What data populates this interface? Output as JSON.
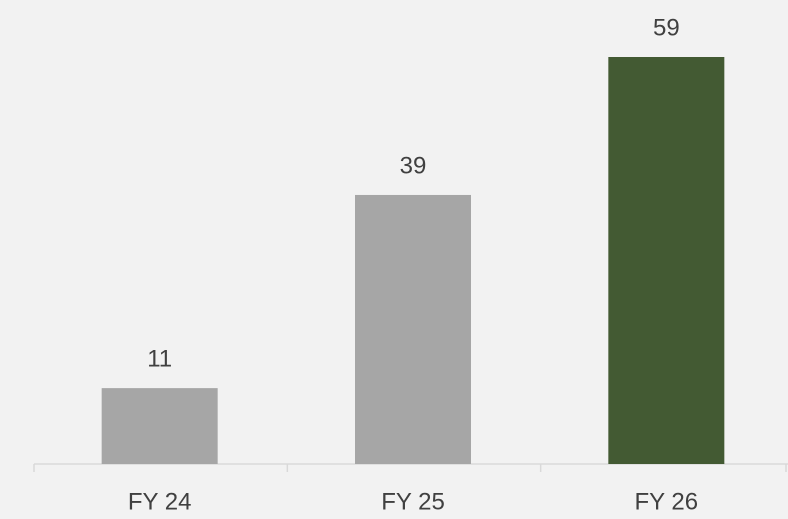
{
  "chart_data": {
    "type": "bar",
    "categories": [
      "FY 24",
      "FY 25",
      "FY 26"
    ],
    "values": [
      11,
      39,
      59
    ],
    "colors": [
      "#a6a6a6",
      "#a6a6a6",
      "#435a33"
    ]
  }
}
